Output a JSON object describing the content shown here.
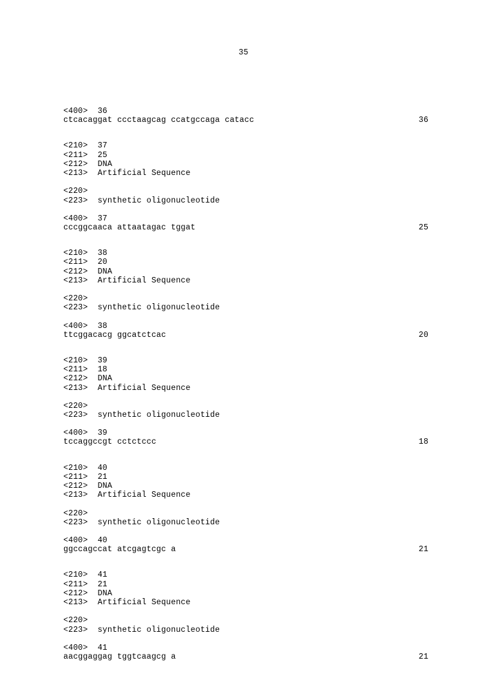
{
  "page_number": "35",
  "font": {
    "family": "Courier New",
    "size_pt": 9,
    "color": "#000000"
  },
  "background_color": "#ffffff",
  "entries": [
    {
      "header_lines": [],
      "feature_lines": [],
      "seq_tag": "<400>  36",
      "sequence": "ctcacaggat ccctaagcag ccatgccaga catacc",
      "length": "36"
    },
    {
      "header_lines": [
        "<210>  37",
        "<211>  25",
        "<212>  DNA",
        "<213>  Artificial Sequence"
      ],
      "feature_lines": [
        "<220>",
        "<223>  synthetic oligonucleotide"
      ],
      "seq_tag": "<400>  37",
      "sequence": "cccggcaaca attaatagac tggat",
      "length": "25"
    },
    {
      "header_lines": [
        "<210>  38",
        "<211>  20",
        "<212>  DNA",
        "<213>  Artificial Sequence"
      ],
      "feature_lines": [
        "<220>",
        "<223>  synthetic oligonucleotide"
      ],
      "seq_tag": "<400>  38",
      "sequence": "ttcggacacg ggcatctcac",
      "length": "20"
    },
    {
      "header_lines": [
        "<210>  39",
        "<211>  18",
        "<212>  DNA",
        "<213>  Artificial Sequence"
      ],
      "feature_lines": [
        "<220>",
        "<223>  synthetic oligonucleotide"
      ],
      "seq_tag": "<400>  39",
      "sequence": "tccaggccgt cctctccc",
      "length": "18"
    },
    {
      "header_lines": [
        "<210>  40",
        "<211>  21",
        "<212>  DNA",
        "<213>  Artificial Sequence"
      ],
      "feature_lines": [
        "<220>",
        "<223>  synthetic oligonucleotide"
      ],
      "seq_tag": "<400>  40",
      "sequence": "ggccagccat atcgagtcgc a",
      "length": "21"
    },
    {
      "header_lines": [
        "<210>  41",
        "<211>  21",
        "<212>  DNA",
        "<213>  Artificial Sequence"
      ],
      "feature_lines": [
        "<220>",
        "<223>  synthetic oligonucleotide"
      ],
      "seq_tag": "<400>  41",
      "sequence": "aacggaggag tggtcaagcg a",
      "length": "21"
    }
  ]
}
